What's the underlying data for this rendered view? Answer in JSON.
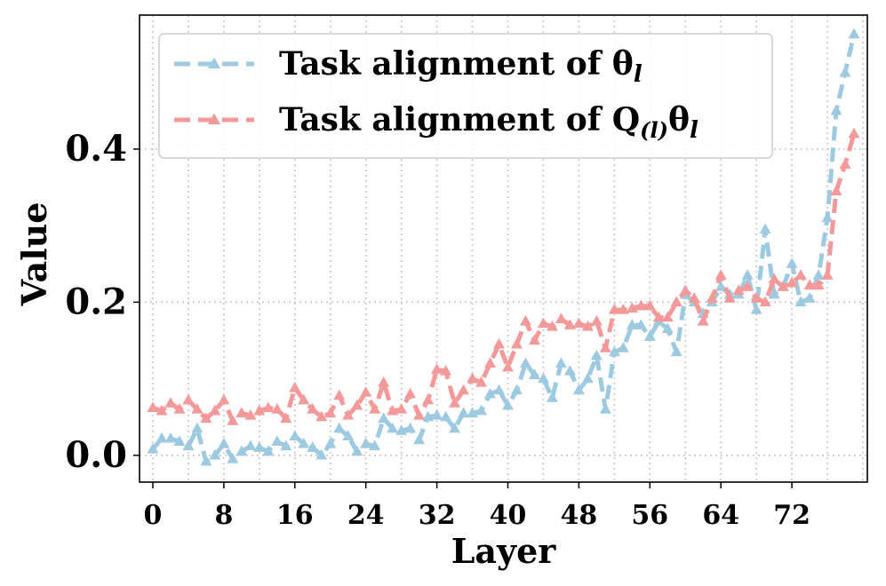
{
  "chart_data": {
    "type": "line",
    "xlabel": "Layer",
    "ylabel": "Value",
    "xlim": [
      -1.5,
      80.5
    ],
    "ylim": [
      -0.035,
      0.575
    ],
    "x_ticks": [
      0,
      8,
      16,
      24,
      32,
      40,
      48,
      56,
      64,
      72
    ],
    "x_tick_labels": [
      "0",
      "8",
      "16",
      "24",
      "32",
      "40",
      "48",
      "56",
      "64",
      "72"
    ],
    "y_ticks": [
      0.0,
      0.2,
      0.4
    ],
    "y_tick_labels": [
      "0.0",
      "0.2",
      "0.4"
    ],
    "grid": true,
    "legend_position": "top-left",
    "x": [
      0,
      1,
      2,
      3,
      4,
      5,
      6,
      7,
      8,
      9,
      10,
      11,
      12,
      13,
      14,
      15,
      16,
      17,
      18,
      19,
      20,
      21,
      22,
      23,
      24,
      25,
      26,
      27,
      28,
      29,
      30,
      31,
      32,
      33,
      34,
      35,
      36,
      37,
      38,
      39,
      40,
      41,
      42,
      43,
      44,
      45,
      46,
      47,
      48,
      49,
      50,
      51,
      52,
      53,
      54,
      55,
      56,
      57,
      58,
      59,
      60,
      61,
      62,
      63,
      64,
      65,
      66,
      67,
      68,
      69,
      70,
      71,
      72,
      73,
      74,
      75,
      76,
      77,
      78,
      79
    ],
    "series": [
      {
        "name_main": "Task alignment of θ",
        "name_sub": "l",
        "color": "#9ecae1",
        "values": [
          0.008,
          0.022,
          0.022,
          0.018,
          0.012,
          0.035,
          -0.008,
          0.0,
          0.015,
          -0.005,
          0.005,
          0.012,
          0.01,
          0.005,
          0.018,
          0.012,
          0.025,
          0.015,
          0.01,
          0.0,
          0.015,
          0.035,
          0.025,
          0.005,
          0.015,
          0.012,
          0.048,
          0.035,
          0.032,
          0.035,
          0.02,
          0.05,
          0.052,
          0.05,
          0.035,
          0.055,
          0.055,
          0.058,
          0.08,
          0.085,
          0.065,
          0.085,
          0.12,
          0.105,
          0.1,
          0.075,
          0.12,
          0.11,
          0.085,
          0.1,
          0.13,
          0.06,
          0.135,
          0.14,
          0.17,
          0.17,
          0.155,
          0.175,
          0.165,
          0.135,
          0.21,
          0.2,
          0.185,
          0.2,
          0.22,
          0.21,
          0.21,
          0.235,
          0.19,
          0.295,
          0.21,
          0.22,
          0.25,
          0.2,
          0.205,
          0.235,
          0.31,
          0.45,
          0.5,
          0.55
        ]
      },
      {
        "name_main": "Task alignment of Q",
        "name_sub_q": "(l)",
        "name_main2": "θ",
        "name_sub": "l",
        "color": "#f4999a",
        "values": [
          0.062,
          0.058,
          0.068,
          0.06,
          0.072,
          0.06,
          0.048,
          0.058,
          0.072,
          0.045,
          0.055,
          0.052,
          0.058,
          0.062,
          0.06,
          0.048,
          0.088,
          0.072,
          0.06,
          0.05,
          0.055,
          0.078,
          0.052,
          0.065,
          0.082,
          0.06,
          0.095,
          0.058,
          0.06,
          0.08,
          0.052,
          0.072,
          0.112,
          0.11,
          0.068,
          0.085,
          0.1,
          0.095,
          0.12,
          0.145,
          0.115,
          0.145,
          0.175,
          0.15,
          0.172,
          0.168,
          0.178,
          0.17,
          0.172,
          0.168,
          0.175,
          0.14,
          0.19,
          0.19,
          0.192,
          0.195,
          0.195,
          0.18,
          0.18,
          0.2,
          0.215,
          0.205,
          0.175,
          0.205,
          0.235,
          0.205,
          0.215,
          0.22,
          0.205,
          0.2,
          0.23,
          0.22,
          0.225,
          0.235,
          0.222,
          0.222,
          0.235,
          0.345,
          0.38,
          0.42
        ]
      }
    ]
  }
}
